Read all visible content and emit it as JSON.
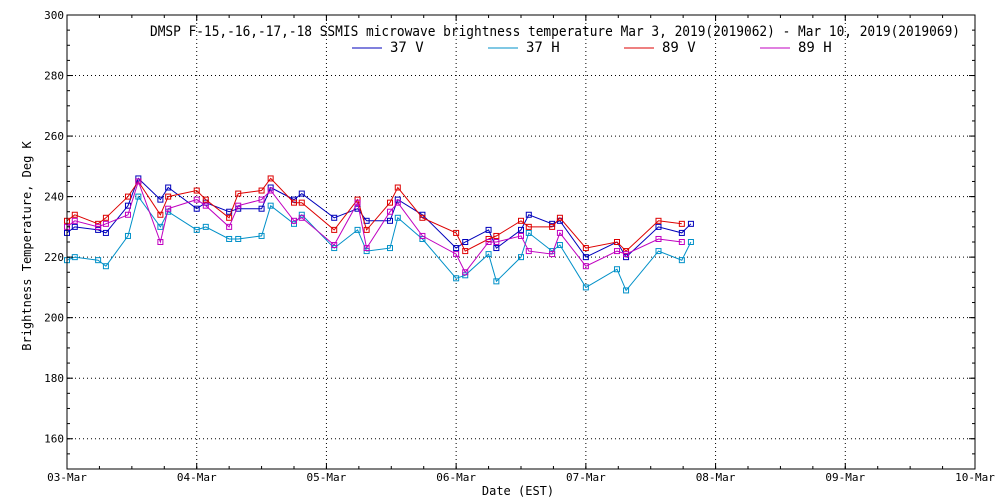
{
  "chart_data": {
    "type": "line",
    "title": "DMSP F-15,-16,-17,-18 SSMIS microwave brightness temperature Mar  3, 2019(2019062) - Mar 10, 2019(2019069)",
    "xlabel": "Date (EST)",
    "ylabel": "Brightness Temperature, Deg K",
    "ylim": [
      150,
      300
    ],
    "yticks": [
      160,
      180,
      200,
      220,
      240,
      260,
      280,
      300
    ],
    "xlim": [
      0,
      7
    ],
    "xticks": [
      {
        "value": 0,
        "label": "03-Mar"
      },
      {
        "value": 1,
        "label": "04-Mar"
      },
      {
        "value": 2,
        "label": "05-Mar"
      },
      {
        "value": 3,
        "label": "06-Mar"
      },
      {
        "value": 4,
        "label": "07-Mar"
      },
      {
        "value": 5,
        "label": "08-Mar"
      },
      {
        "value": 6,
        "label": "09-Mar"
      },
      {
        "value": 7,
        "label": "10-Mar"
      }
    ],
    "grid": true,
    "legend_position": "top-center",
    "series": [
      {
        "name": "37 V",
        "color": "#0000bb",
        "points": [
          [
            0.0,
            228
          ],
          [
            0.06,
            230
          ],
          [
            0.24,
            229
          ],
          [
            0.3,
            228
          ],
          [
            0.47,
            237
          ],
          [
            0.55,
            246
          ],
          [
            0.72,
            239
          ],
          [
            0.78,
            243
          ],
          [
            1.0,
            236
          ],
          [
            1.07,
            238
          ],
          [
            1.25,
            235
          ],
          [
            1.32,
            236
          ],
          [
            1.5,
            236
          ],
          [
            1.57,
            243
          ],
          [
            1.75,
            239
          ],
          [
            1.81,
            241
          ],
          [
            2.06,
            233
          ],
          [
            2.24,
            236
          ],
          [
            2.31,
            232
          ],
          [
            2.49,
            232
          ],
          [
            2.55,
            239
          ],
          [
            2.74,
            234
          ],
          [
            3.0,
            223
          ],
          [
            3.07,
            225
          ],
          [
            3.25,
            229
          ],
          [
            3.31,
            223
          ],
          [
            3.5,
            229
          ],
          [
            3.56,
            234
          ],
          [
            3.74,
            231
          ],
          [
            3.8,
            232
          ],
          [
            4.0,
            220
          ],
          [
            4.24,
            225
          ],
          [
            4.31,
            220
          ],
          [
            4.56,
            230
          ],
          [
            4.74,
            228
          ],
          [
            4.81,
            231
          ]
        ]
      },
      {
        "name": "37 H",
        "color": "#0090c8",
        "points": [
          [
            0.0,
            219
          ],
          [
            0.06,
            220
          ],
          [
            0.24,
            219
          ],
          [
            0.3,
            217
          ],
          [
            0.47,
            227
          ],
          [
            0.55,
            240
          ],
          [
            0.72,
            230
          ],
          [
            0.78,
            235
          ],
          [
            1.0,
            229
          ],
          [
            1.07,
            230
          ],
          [
            1.25,
            226
          ],
          [
            1.32,
            226
          ],
          [
            1.5,
            227
          ],
          [
            1.57,
            237
          ],
          [
            1.75,
            231
          ],
          [
            1.81,
            234
          ],
          [
            2.06,
            223
          ],
          [
            2.24,
            229
          ],
          [
            2.31,
            222
          ],
          [
            2.49,
            223
          ],
          [
            2.55,
            233
          ],
          [
            2.74,
            226
          ],
          [
            3.0,
            213
          ],
          [
            3.07,
            214
          ],
          [
            3.25,
            221
          ],
          [
            3.31,
            212
          ],
          [
            3.5,
            220
          ],
          [
            3.56,
            228
          ],
          [
            3.74,
            222
          ],
          [
            3.8,
            224
          ],
          [
            4.0,
            210
          ],
          [
            4.24,
            216
          ],
          [
            4.31,
            209
          ],
          [
            4.56,
            222
          ],
          [
            4.74,
            219
          ],
          [
            4.81,
            225
          ]
        ]
      },
      {
        "name": "89 V",
        "color": "#dd0000",
        "points": [
          [
            0.0,
            232
          ],
          [
            0.06,
            234
          ],
          [
            0.24,
            231
          ],
          [
            0.3,
            233
          ],
          [
            0.47,
            240
          ],
          [
            0.55,
            245
          ],
          [
            0.72,
            234
          ],
          [
            0.78,
            240
          ],
          [
            1.0,
            242
          ],
          [
            1.07,
            239
          ],
          [
            1.25,
            233
          ],
          [
            1.32,
            241
          ],
          [
            1.5,
            242
          ],
          [
            1.57,
            246
          ],
          [
            1.75,
            238
          ],
          [
            1.81,
            238
          ],
          [
            2.06,
            229
          ],
          [
            2.24,
            239
          ],
          [
            2.31,
            229
          ],
          [
            2.49,
            238
          ],
          [
            2.55,
            243
          ],
          [
            2.74,
            233
          ],
          [
            3.0,
            228
          ],
          [
            3.07,
            222
          ],
          [
            3.25,
            226
          ],
          [
            3.31,
            227
          ],
          [
            3.5,
            232
          ],
          [
            3.56,
            230
          ],
          [
            3.74,
            230
          ],
          [
            3.8,
            233
          ],
          [
            4.0,
            223
          ],
          [
            4.24,
            225
          ],
          [
            4.31,
            222
          ],
          [
            4.56,
            232
          ],
          [
            4.74,
            231
          ]
        ]
      },
      {
        "name": "89 H",
        "color": "#c000c0",
        "points": [
          [
            0.0,
            230
          ],
          [
            0.06,
            232
          ],
          [
            0.24,
            230
          ],
          [
            0.3,
            231
          ],
          [
            0.47,
            234
          ],
          [
            0.55,
            245
          ],
          [
            0.72,
            225
          ],
          [
            0.78,
            236
          ],
          [
            1.0,
            239
          ],
          [
            1.07,
            237
          ],
          [
            1.25,
            230
          ],
          [
            1.32,
            237
          ],
          [
            1.5,
            239
          ],
          [
            1.57,
            242
          ],
          [
            1.75,
            232
          ],
          [
            1.81,
            233
          ],
          [
            2.06,
            224
          ],
          [
            2.24,
            238
          ],
          [
            2.31,
            223
          ],
          [
            2.49,
            235
          ],
          [
            2.55,
            238
          ],
          [
            2.74,
            227
          ],
          [
            3.0,
            221
          ],
          [
            3.07,
            215
          ],
          [
            3.25,
            225
          ],
          [
            3.31,
            225
          ],
          [
            3.5,
            227
          ],
          [
            3.56,
            222
          ],
          [
            3.74,
            221
          ],
          [
            3.8,
            228
          ],
          [
            4.0,
            217
          ],
          [
            4.24,
            222
          ],
          [
            4.31,
            221
          ],
          [
            4.56,
            226
          ],
          [
            4.74,
            225
          ]
        ]
      }
    ]
  }
}
